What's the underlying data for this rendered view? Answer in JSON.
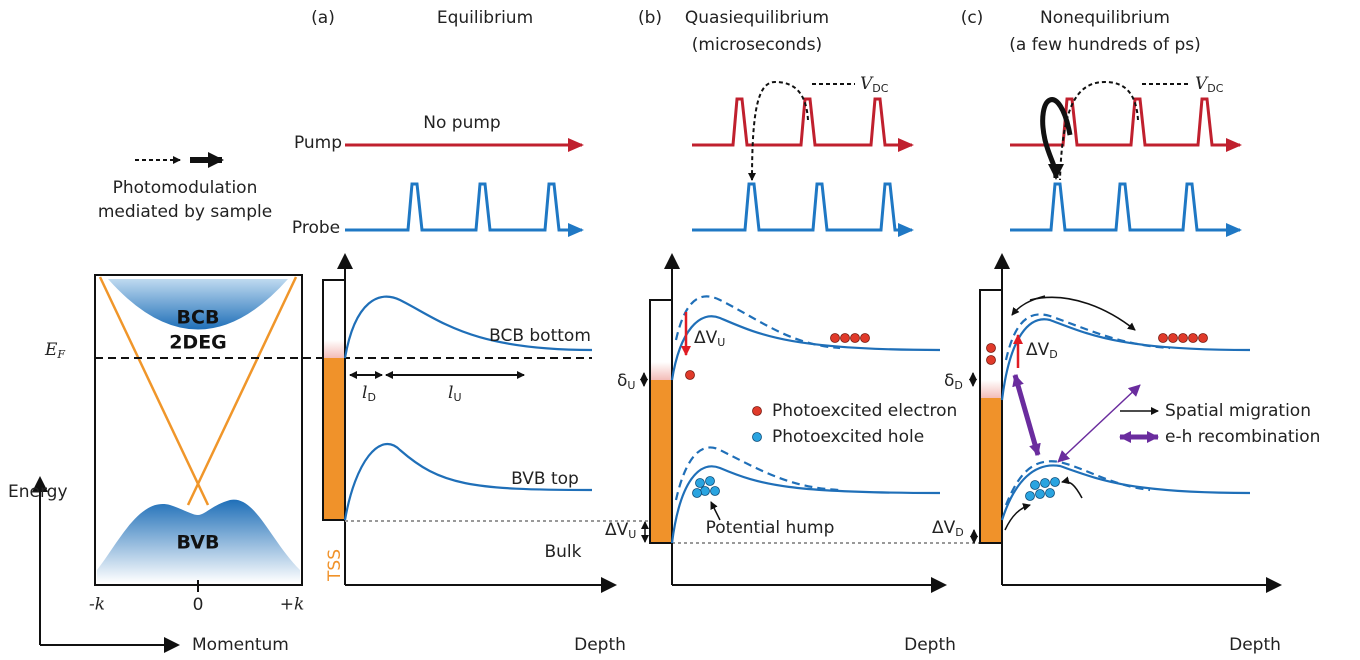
{
  "panels": [
    {
      "tag": "(a)",
      "title": [
        "Equilibrium"
      ]
    },
    {
      "tag": "(b)",
      "title": [
        "Quasiequilibrium",
        "(microseconds)"
      ]
    },
    {
      "tag": "(c)",
      "title": [
        "Nonequilibrium",
        "(a few hundreds of ps)"
      ]
    }
  ],
  "legend": {
    "pump": "Pump",
    "probe": "Probe",
    "no_pump": "No pump",
    "photomodulation": [
      "Photomodulation",
      "mediated by sample"
    ]
  },
  "vdc": {
    "symbol": "V",
    "subscript": "DC"
  },
  "band_structure": {
    "bcb": "BCB",
    "twodeg": "2DEG",
    "fermi": {
      "symbol": "E",
      "subscript": "F"
    },
    "bvb": "BVB",
    "k_ticks": [
      "-k",
      "0",
      "+k"
    ],
    "energy": "Energy",
    "momentum": "Momentum"
  },
  "equilibrium": {
    "tss": "TSS",
    "bcb_bottom": "BCB bottom",
    "bvb_top": "BVB top",
    "bulk": "Bulk",
    "l_d": {
      "symbol": "l",
      "subscript": "D"
    },
    "l_u": {
      "symbol": "l",
      "subscript": "U"
    }
  },
  "depth": "Depth",
  "quasi": {
    "delta_u": {
      "symbol": "δ",
      "subscript": "U"
    },
    "dv_u": {
      "symbol": "ΔV",
      "subscript": "U"
    },
    "electron": "Photoexcited electron",
    "hole": "Photoexcited hole",
    "hump": "Potential hump"
  },
  "noneq": {
    "delta_d": {
      "symbol": "δ",
      "subscript": "D"
    },
    "dv_d": {
      "symbol": "ΔV",
      "subscript": "D"
    },
    "migration": "Spatial migration",
    "recombination": "e-h recombination"
  }
}
